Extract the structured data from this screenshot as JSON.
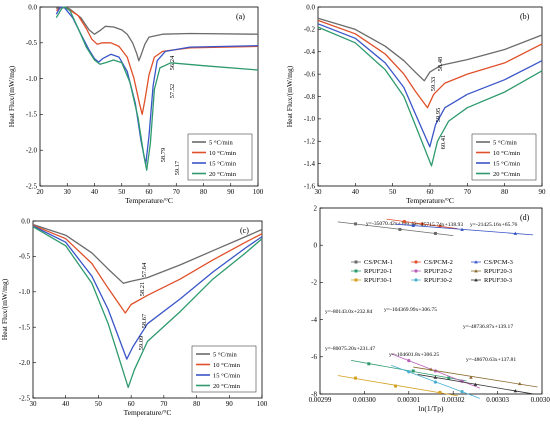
{
  "colors": {
    "c5": "#6b6b6b",
    "c10": "#e0502a",
    "c15": "#3a55c8",
    "c20": "#2e9a6e",
    "axis": "#000000"
  },
  "legend_rate": [
    "5 °C/min",
    "10 °C/min",
    "15 °C/min",
    "20 °C/min"
  ],
  "legend_d": [
    "CS/PCM-1",
    "CS/PCM-2",
    "CS/PCM-3",
    "RPUF20-1",
    "RPUF20-2",
    "RPUF20-3",
    "RPUF30-1",
    "RPUF30-2",
    "RPUF30-3"
  ],
  "chart_data": [
    {
      "id": "a",
      "type": "line",
      "panel_label": "(a)",
      "xlabel": "Temperature/°C",
      "ylabel": "Heat Flux/(mW/mg)",
      "xlim": [
        20,
        100
      ],
      "ylim": [
        -2.5,
        0.0
      ],
      "xticks": [
        "20",
        "30",
        "40",
        "50",
        "60",
        "70",
        "80",
        "90",
        "100"
      ],
      "yticks": [
        "0.0",
        "-0.5",
        "-1.0",
        "-1.5",
        "-2.0",
        "-2.5"
      ],
      "peak_labels": [
        "56.24",
        "57.52",
        "58.79",
        "59.17"
      ],
      "series": [
        {
          "name": "5 °C/min",
          "points": [
            [
              26,
              -0.02
            ],
            [
              29,
              0.0
            ],
            [
              31,
              -0.03
            ],
            [
              35,
              -0.15
            ],
            [
              38,
              -0.32
            ],
            [
              40,
              -0.38
            ],
            [
              42,
              -0.33
            ],
            [
              44,
              -0.27
            ],
            [
              47,
              -0.28
            ],
            [
              50,
              -0.32
            ],
            [
              52,
              -0.38
            ],
            [
              54,
              -0.5
            ],
            [
              55.5,
              -0.65
            ],
            [
              56.24,
              -0.75
            ],
            [
              57,
              -0.68
            ],
            [
              58.5,
              -0.52
            ],
            [
              60,
              -0.42
            ],
            [
              65,
              -0.38
            ],
            [
              75,
              -0.37
            ],
            [
              100,
              -0.38
            ]
          ]
        },
        {
          "name": "10 °C/min",
          "points": [
            [
              26,
              -0.05
            ],
            [
              28,
              0.0
            ],
            [
              30,
              -0.02
            ],
            [
              34,
              -0.12
            ],
            [
              37,
              -0.3
            ],
            [
              39,
              -0.45
            ],
            [
              41,
              -0.52
            ],
            [
              43,
              -0.5
            ],
            [
              46,
              -0.5
            ],
            [
              49,
              -0.55
            ],
            [
              52,
              -0.7
            ],
            [
              54.5,
              -1.0
            ],
            [
              56.5,
              -1.35
            ],
            [
              57.52,
              -1.5
            ],
            [
              58.5,
              -1.3
            ],
            [
              60,
              -0.95
            ],
            [
              62,
              -0.7
            ],
            [
              65,
              -0.62
            ],
            [
              75,
              -0.57
            ],
            [
              100,
              -0.55
            ]
          ]
        },
        {
          "name": "15 °C/min",
          "points": [
            [
              26,
              -0.1
            ],
            [
              27.5,
              0.0
            ],
            [
              29,
              -0.01
            ],
            [
              32,
              -0.15
            ],
            [
              35,
              -0.38
            ],
            [
              38,
              -0.6
            ],
            [
              40,
              -0.72
            ],
            [
              41.5,
              -0.77
            ],
            [
              43,
              -0.72
            ],
            [
              46,
              -0.66
            ],
            [
              49,
              -0.7
            ],
            [
              52,
              -0.9
            ],
            [
              55,
              -1.35
            ],
            [
              57,
              -1.85
            ],
            [
              58.79,
              -2.2
            ],
            [
              60,
              -1.8
            ],
            [
              61.5,
              -1.1
            ],
            [
              63,
              -0.75
            ],
            [
              66,
              -0.62
            ],
            [
              75,
              -0.56
            ],
            [
              100,
              -0.54
            ]
          ]
        },
        {
          "name": "20 °C/min",
          "points": [
            [
              26,
              -0.15
            ],
            [
              28,
              -0.02
            ],
            [
              29,
              0.0
            ],
            [
              31,
              -0.05
            ],
            [
              34,
              -0.3
            ],
            [
              37,
              -0.56
            ],
            [
              40,
              -0.74
            ],
            [
              42,
              -0.8
            ],
            [
              44,
              -0.78
            ],
            [
              47,
              -0.74
            ],
            [
              50,
              -0.78
            ],
            [
              53,
              -1.05
            ],
            [
              56,
              -1.55
            ],
            [
              58,
              -2.05
            ],
            [
              59.17,
              -2.28
            ],
            [
              60.5,
              -1.9
            ],
            [
              62,
              -1.15
            ],
            [
              64,
              -0.85
            ],
            [
              68,
              -0.78
            ],
            [
              80,
              -0.82
            ],
            [
              100,
              -0.88
            ]
          ]
        }
      ]
    },
    {
      "id": "b",
      "type": "line",
      "panel_label": "(b)",
      "xlabel": "Temperature/°C",
      "ylabel": "Heat Flux/(mW/mg)",
      "xlim": [
        30,
        90
      ],
      "ylim": [
        -1.6,
        0.0
      ],
      "xticks": [
        "30",
        "40",
        "50",
        "60",
        "70",
        "80",
        "90"
      ],
      "yticks": [
        "0.0",
        "-0.2",
        "-0.4",
        "-0.6",
        "-0.8",
        "-1.0",
        "-1.2",
        "-1.4",
        "-1.6"
      ],
      "peak_labels": [
        "58.48",
        "59.33",
        "59.95",
        "60.41"
      ],
      "series": [
        {
          "name": "5 °C/min",
          "points": [
            [
              30,
              -0.1
            ],
            [
              40,
              -0.2
            ],
            [
              48,
              -0.35
            ],
            [
              53,
              -0.48
            ],
            [
              56,
              -0.58
            ],
            [
              58.48,
              -0.66
            ],
            [
              60,
              -0.58
            ],
            [
              63,
              -0.52
            ],
            [
              70,
              -0.47
            ],
            [
              80,
              -0.38
            ],
            [
              90,
              -0.25
            ]
          ]
        },
        {
          "name": "10 °C/min",
          "points": [
            [
              30,
              -0.12
            ],
            [
              40,
              -0.24
            ],
            [
              48,
              -0.42
            ],
            [
              53,
              -0.6
            ],
            [
              56,
              -0.75
            ],
            [
              59.33,
              -0.9
            ],
            [
              61,
              -0.78
            ],
            [
              64,
              -0.68
            ],
            [
              70,
              -0.6
            ],
            [
              80,
              -0.5
            ],
            [
              90,
              -0.33
            ]
          ]
        },
        {
          "name": "15 °C/min",
          "points": [
            [
              30,
              -0.15
            ],
            [
              40,
              -0.28
            ],
            [
              48,
              -0.5
            ],
            [
              53,
              -0.72
            ],
            [
              56,
              -0.95
            ],
            [
              59.95,
              -1.25
            ],
            [
              61.5,
              -1.05
            ],
            [
              64,
              -0.9
            ],
            [
              70,
              -0.78
            ],
            [
              80,
              -0.65
            ],
            [
              90,
              -0.48
            ]
          ]
        },
        {
          "name": "20 °C/min",
          "points": [
            [
              30,
              -0.18
            ],
            [
              40,
              -0.32
            ],
            [
              48,
              -0.56
            ],
            [
              53,
              -0.8
            ],
            [
              56,
              -1.05
            ],
            [
              60.41,
              -1.42
            ],
            [
              62,
              -1.2
            ],
            [
              65,
              -1.02
            ],
            [
              70,
              -0.9
            ],
            [
              80,
              -0.76
            ],
            [
              90,
              -0.57
            ]
          ]
        }
      ]
    },
    {
      "id": "c",
      "type": "line",
      "panel_label": "(c)",
      "xlabel": "Temperature/°C",
      "ylabel": "Heat Flux/(mW/mg)",
      "xlim": [
        30,
        100
      ],
      "ylim": [
        -2.5,
        0.0
      ],
      "xticks": [
        "30",
        "40",
        "50",
        "60",
        "70",
        "80",
        "90",
        "100"
      ],
      "yticks": [
        "0.0",
        "-0.5",
        "-1.0",
        "-1.5",
        "-2.0",
        "-2.5"
      ],
      "peak_labels": [
        "57.64",
        "58.21",
        "58.67",
        "59.09"
      ],
      "series": [
        {
          "name": "5 °C/min",
          "points": [
            [
              30,
              -0.05
            ],
            [
              40,
              -0.2
            ],
            [
              48,
              -0.45
            ],
            [
              53,
              -0.68
            ],
            [
              57.64,
              -0.88
            ],
            [
              60,
              -0.85
            ],
            [
              65,
              -0.8
            ],
            [
              75,
              -0.62
            ],
            [
              85,
              -0.42
            ],
            [
              95,
              -0.22
            ],
            [
              100,
              -0.12
            ]
          ]
        },
        {
          "name": "10 °C/min",
          "points": [
            [
              30,
              -0.06
            ],
            [
              40,
              -0.25
            ],
            [
              48,
              -0.6
            ],
            [
              53,
              -0.95
            ],
            [
              58.21,
              -1.3
            ],
            [
              60,
              -1.18
            ],
            [
              65,
              -1.05
            ],
            [
              75,
              -0.82
            ],
            [
              85,
              -0.55
            ],
            [
              95,
              -0.3
            ],
            [
              100,
              -0.18
            ]
          ]
        },
        {
          "name": "15 °C/min",
          "points": [
            [
              30,
              -0.07
            ],
            [
              40,
              -0.3
            ],
            [
              48,
              -0.78
            ],
            [
              53,
              -1.25
            ],
            [
              58.67,
              -1.95
            ],
            [
              60.5,
              -1.78
            ],
            [
              65,
              -1.45
            ],
            [
              75,
              -1.1
            ],
            [
              85,
              -0.72
            ],
            [
              95,
              -0.38
            ],
            [
              100,
              -0.22
            ]
          ]
        },
        {
          "name": "20 °C/min",
          "points": [
            [
              30,
              -0.08
            ],
            [
              40,
              -0.35
            ],
            [
              48,
              -0.88
            ],
            [
              53,
              -1.45
            ],
            [
              59.09,
              -2.35
            ],
            [
              61,
              -2.1
            ],
            [
              65,
              -1.7
            ],
            [
              75,
              -1.28
            ],
            [
              85,
              -0.82
            ],
            [
              95,
              -0.45
            ],
            [
              100,
              -0.25
            ]
          ]
        }
      ]
    },
    {
      "id": "d",
      "type": "scatter",
      "panel_label": "(d)",
      "xlabel": "ln(1/Tp)",
      "ylabel": "",
      "xlim": [
        0.00299,
        0.00304
      ],
      "ylim": [
        -9.5,
        2.2
      ],
      "xticks": [
        "0.00299",
        "0.00300",
        "0.00301",
        "0.00302",
        "0.00303",
        "0.00304"
      ],
      "yticks": [
        "2",
        "0",
        "-2",
        "-4",
        "-6",
        "-8"
      ],
      "series": [
        {
          "name": "CS/PCM-1",
          "color": "#6b6b6b",
          "x": [
            0.002998,
            0.003008,
            0.003016
          ],
          "y": [
            1.2,
            0.85,
            0.6
          ],
          "equation": "y=-35070.42x+106.46"
        },
        {
          "name": "CS/PCM-2",
          "color": "#e0502a",
          "x": [
            0.003009,
            0.003013,
            0.003017
          ],
          "y": [
            1.35,
            1.2,
            1.05
          ],
          "equation": "y=-45715.74x+138.93"
        },
        {
          "name": "CS/PCM-3",
          "color": "#3a55c8",
          "x": [
            0.003011,
            0.003022,
            0.003034
          ],
          "y": [
            1.1,
            0.85,
            0.6
          ],
          "equation": "y=-21425.16x+65.76"
        },
        {
          "name": "RPUF20-1",
          "color": "#2e9a6e",
          "x": [
            0.003001,
            0.003011,
            0.003019
          ],
          "y": [
            -7.6,
            -8.05,
            -8.5
          ],
          "equation": "y=-80143.0x+232.84"
        },
        {
          "name": "RPUF20-2",
          "color": "#b85fb8",
          "x": [
            0.00301,
            0.003016,
            0.003022
          ],
          "y": [
            -7.4,
            -8.05,
            -8.7
          ],
          "equation": "y=-104369.99x+306.75"
        },
        {
          "name": "RPUF20-3",
          "color": "#8a6a30",
          "x": [
            0.003015,
            0.003024,
            0.003035
          ],
          "y": [
            -7.95,
            -8.45,
            -8.85
          ],
          "equation": "y=-48736.87x+139.17"
        },
        {
          "name": "RPUF30-1",
          "color": "#d4a020",
          "x": [
            0.002998,
            0.003007,
            0.003017
          ],
          "y": [
            -8.5,
            -9.0,
            -9.4
          ],
          "equation": "y=-80075.20x+231.47"
        },
        {
          "name": "RPUF30-2",
          "color": "#4ab0d0",
          "x": [
            0.00301,
            0.003016,
            0.003022
          ],
          "y": [
            -8.1,
            -8.75,
            -9.35
          ],
          "equation": "y=-104601.8x+306.25"
        },
        {
          "name": "RPUF30-3",
          "color": "#333333",
          "x": [
            0.003016,
            0.003025,
            0.003034
          ],
          "y": [
            -8.45,
            -8.9,
            -9.3
          ],
          "equation": "y=-48670.63x+137.81"
        }
      ]
    }
  ]
}
